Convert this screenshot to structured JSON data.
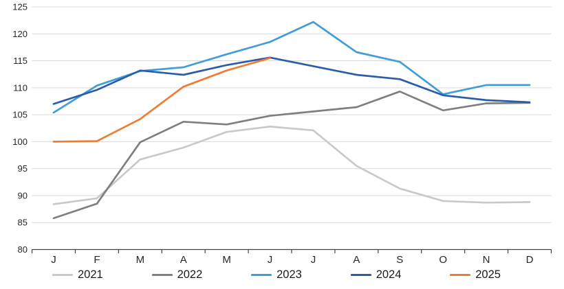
{
  "chart_data": {
    "type": "line",
    "title": "",
    "categories": [
      "J",
      "F",
      "M",
      "A",
      "M",
      "J",
      "J",
      "A",
      "S",
      "O",
      "N",
      "D"
    ],
    "y_axis": {
      "min": 80,
      "max": 125,
      "step": 5,
      "tick_labels": [
        "80",
        "85",
        "90",
        "95",
        "100",
        "105",
        "110",
        "115",
        "120",
        "125"
      ]
    },
    "series": [
      {
        "name": "2021",
        "color": "#c9c9c9",
        "values": [
          88.4,
          89.5,
          96.7,
          98.9,
          101.8,
          102.8,
          102.1,
          95.5,
          91.3,
          89.0,
          88.7,
          88.8
        ]
      },
      {
        "name": "2022",
        "color": "#7f7f7f",
        "values": [
          85.8,
          88.5,
          99.9,
          103.7,
          103.2,
          104.8,
          105.6,
          106.4,
          109.3,
          105.8,
          107.1,
          107.2
        ]
      },
      {
        "name": "2023",
        "color": "#3f9ed9",
        "values": [
          105.4,
          110.4,
          113.1,
          113.8,
          116.2,
          118.5,
          122.2,
          116.6,
          114.8,
          108.8,
          110.5,
          110.5
        ]
      },
      {
        "name": "2024",
        "color": "#2b5ca9",
        "values": [
          107.0,
          109.6,
          113.2,
          112.4,
          114.2,
          115.6,
          114.0,
          112.4,
          111.6,
          108.6,
          107.7,
          107.3
        ]
      },
      {
        "name": "2025",
        "color": "#ed7d31",
        "values": [
          100.0,
          100.1,
          104.2,
          110.2,
          113.2,
          115.5
        ]
      }
    ],
    "grid": true,
    "legend_position": "bottom",
    "background": "#ffffff",
    "gridline_color": "#d9d9d9",
    "axis_color": "#404040"
  }
}
